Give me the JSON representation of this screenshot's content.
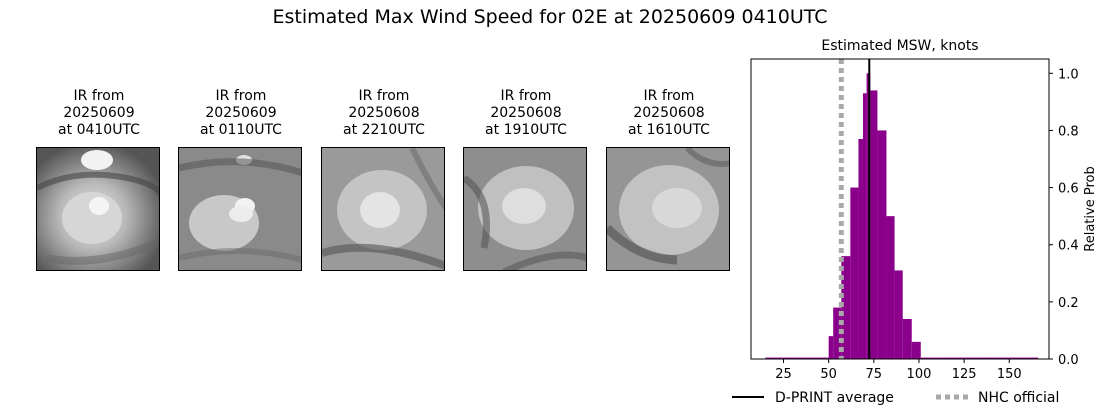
{
  "figure": {
    "title": "Estimated Max Wind Speed for 02E at 20250609 0410UTC"
  },
  "ir_panels": [
    {
      "caption_line1": "IR from",
      "caption_line2": "20250609",
      "caption_line3": "at 0410UTC"
    },
    {
      "caption_line1": "IR from",
      "caption_line2": "20250609",
      "caption_line3": "at 0110UTC"
    },
    {
      "caption_line1": "IR from",
      "caption_line2": "20250608",
      "caption_line3": "at 2210UTC"
    },
    {
      "caption_line1": "IR from",
      "caption_line2": "20250608",
      "caption_line3": "at 1910UTC"
    },
    {
      "caption_line1": "IR from",
      "caption_line2": "20250608",
      "caption_line3": "at 1610UTC"
    }
  ],
  "chart_data": {
    "type": "bar",
    "title": "Estimated MSW, knots",
    "xlabel": "",
    "ylabel": "Relative Prob",
    "xlim": [
      7,
      172
    ],
    "ylim": [
      0,
      1.05
    ],
    "xticks": [
      25,
      50,
      75,
      100,
      125,
      150
    ],
    "yticks": [
      0.0,
      0.2,
      0.4,
      0.6,
      0.8,
      1.0
    ],
    "yaxis_side": "right",
    "bar_color": "#8b008b",
    "bin_width": 5,
    "bins": [
      {
        "x0": 15,
        "value": 0.005
      },
      {
        "x0": 20,
        "value": 0.005
      },
      {
        "x0": 25,
        "value": 0.005
      },
      {
        "x0": 30,
        "value": 0.005
      },
      {
        "x0": 35,
        "value": 0.005
      },
      {
        "x0": 40,
        "value": 0.005
      },
      {
        "x0": 45,
        "value": 0.005
      },
      {
        "x0": 50,
        "value": 0.08
      },
      {
        "x0": 52.5,
        "value": 0.18
      },
      {
        "x0": 57,
        "value": 0.36
      },
      {
        "x0": 62,
        "value": 0.6
      },
      {
        "x0": 66.5,
        "value": 0.77
      },
      {
        "x0": 69,
        "value": 0.93
      },
      {
        "x0": 71,
        "value": 1.0
      },
      {
        "x0": 73,
        "value": 0.94
      },
      {
        "x0": 77,
        "value": 0.8
      },
      {
        "x0": 82,
        "value": 0.5
      },
      {
        "x0": 86.5,
        "value": 0.31
      },
      {
        "x0": 91,
        "value": 0.14
      },
      {
        "x0": 96,
        "value": 0.06
      },
      {
        "x0": 101,
        "value": 0.005
      },
      {
        "x0": 106,
        "value": 0.005
      },
      {
        "x0": 111,
        "value": 0.005
      },
      {
        "x0": 116,
        "value": 0.005
      },
      {
        "x0": 121,
        "value": 0.005
      },
      {
        "x0": 126,
        "value": 0.005
      },
      {
        "x0": 131,
        "value": 0.005
      },
      {
        "x0": 136,
        "value": 0.005
      },
      {
        "x0": 141,
        "value": 0.005
      },
      {
        "x0": 146,
        "value": 0.005
      },
      {
        "x0": 151,
        "value": 0.005
      },
      {
        "x0": 156,
        "value": 0.005
      },
      {
        "x0": 161,
        "value": 0.005
      }
    ],
    "dprint_average": 72.5,
    "nhc_official": 57,
    "legend": {
      "placement": "bottom",
      "entries": [
        {
          "label": "D-PRINT average",
          "style": "solid",
          "color": "#000000"
        },
        {
          "label": "NHC official",
          "style": "dotted",
          "color": "#a9a9a9"
        }
      ]
    }
  }
}
